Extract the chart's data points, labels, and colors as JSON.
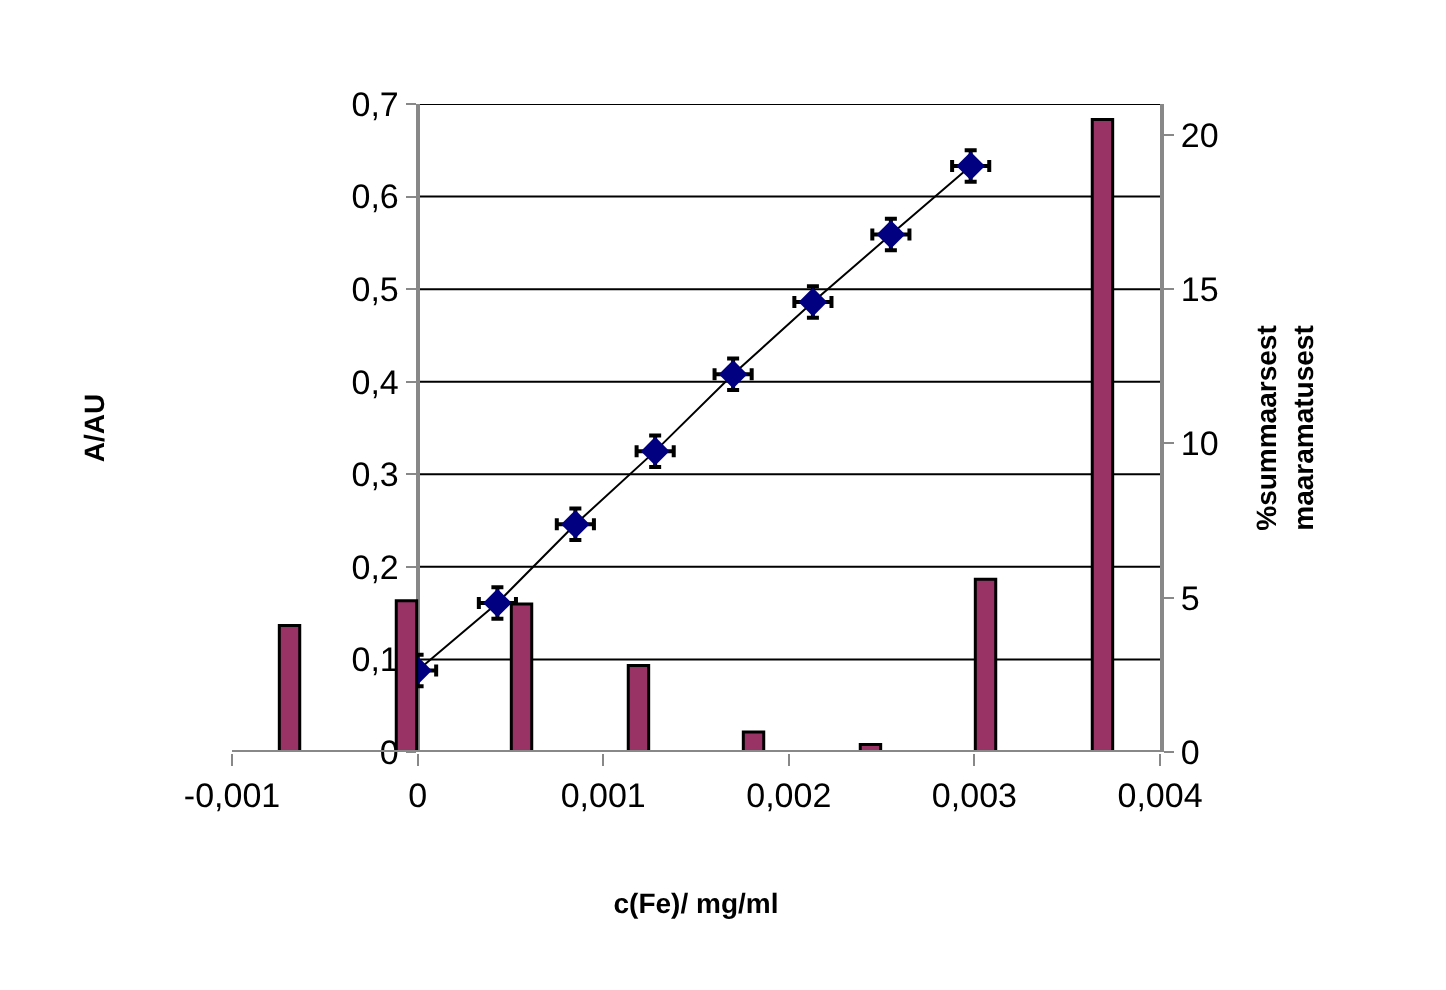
{
  "chart_data": {
    "type": "bar",
    "xlabel": "c(Fe)/ mg/ml",
    "ylabel": "A/AU",
    "y2label": "%summaarsest\nmaaramatusest",
    "series": [
      {
        "axis": "y2",
        "color": "#993366",
        "x": [
          -0.00069,
          -6e-05,
          0.00056,
          0.00119,
          0.00181,
          0.00244,
          0.00306,
          0.00369
        ],
        "values": [
          4.1,
          4.9,
          4.8,
          2.8,
          0.65,
          0.24,
          5.6,
          20.5
        ]
      },
      {
        "type": "line",
        "color": "#000080",
        "marker": "diamond",
        "x": [
          0,
          0.00043,
          0.00085,
          0.00128,
          0.0017,
          0.00213,
          0.00255,
          0.00298
        ],
        "values": [
          0.088,
          0.161,
          0.246,
          0.325,
          0.408,
          0.486,
          0.559,
          0.633
        ],
        "errors": [
          0.017,
          0.017,
          0.017,
          0.017,
          0.017,
          0.017,
          0.017,
          0.017
        ],
        "xerrors": [
          0.0001,
          0.0001,
          0.0001,
          0.0001,
          0.0001,
          0.0001,
          0.0001,
          0.0001
        ]
      }
    ],
    "xlim": [
      -0.001,
      0.004
    ],
    "xticks": [
      {
        "value": -0.001,
        "label": "-0,001"
      },
      0,
      {
        "value": 0.001,
        "label": "0,001"
      },
      {
        "value": 0.002,
        "label": "0,002"
      },
      {
        "value": 0.003,
        "label": "0,003"
      },
      {
        "value": 0.004,
        "label": "0,004"
      }
    ],
    "ylim": [
      0,
      0.7
    ],
    "yticks": [
      0,
      {
        "value": 0.1,
        "label": "0,1"
      },
      {
        "value": 0.2,
        "label": "0,2"
      },
      {
        "value": 0.3,
        "label": "0,3"
      },
      {
        "value": 0.4,
        "label": "0,4"
      },
      {
        "value": 0.5,
        "label": "0,5"
      },
      {
        "value": 0.6,
        "label": "0,6"
      },
      {
        "value": 0.7,
        "label": "0,7"
      }
    ],
    "y2lim": [
      0,
      21
    ],
    "y2ticks": [
      0,
      5,
      10,
      15,
      20
    ],
    "grid": "y"
  }
}
